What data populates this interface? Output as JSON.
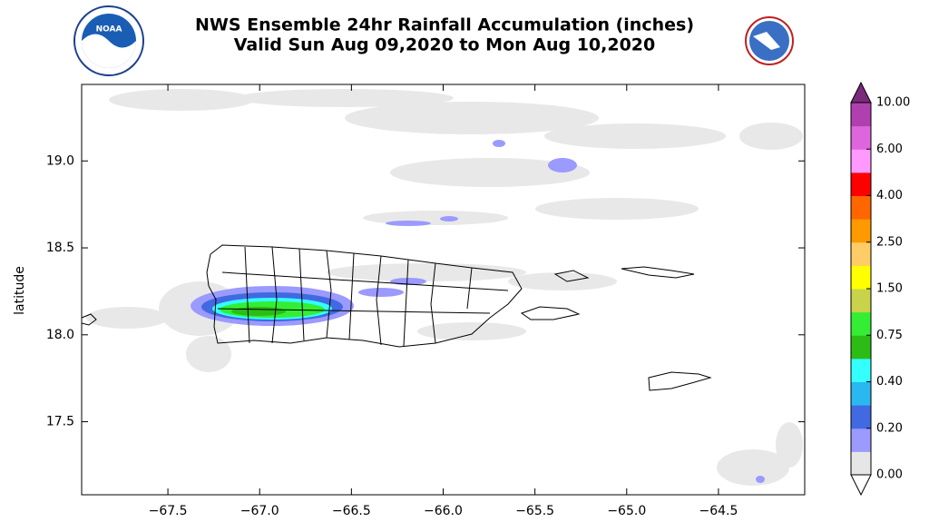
{
  "chart_data": {
    "type": "map",
    "title": [
      "NWS Ensemble 24hr Rainfall Accumulation (inches)",
      "Valid Sun Aug 09,2020 to Mon Aug 10,2020"
    ],
    "ylabel": "latitude",
    "xlim": [
      -67.97,
      -64.03
    ],
    "ylim": [
      17.08,
      19.44
    ],
    "xticks": [
      {
        "value": -67.5,
        "label": "−67.5"
      },
      {
        "value": -67.0,
        "label": "−67.0"
      },
      {
        "value": -66.5,
        "label": "−66.5"
      },
      {
        "value": -66.0,
        "label": "−66.0"
      },
      {
        "value": -65.5,
        "label": "−65.5"
      },
      {
        "value": -65.0,
        "label": "−65.0"
      },
      {
        "value": -64.5,
        "label": "−64.5"
      }
    ],
    "yticks": [
      {
        "value": 17.5,
        "label": "17.5"
      },
      {
        "value": 18.0,
        "label": "18.0"
      },
      {
        "value": 18.5,
        "label": "18.5"
      },
      {
        "value": 19.0,
        "label": "19.0"
      }
    ],
    "colorbar": {
      "ticks": [
        {
          "value": 0,
          "label": "0.00"
        },
        {
          "value": 0.2,
          "label": "0.20"
        },
        {
          "value": 0.4,
          "label": "0.40"
        },
        {
          "value": 0.75,
          "label": "0.75"
        },
        {
          "value": 1.5,
          "label": "1.50"
        },
        {
          "value": 2.5,
          "label": "2.50"
        },
        {
          "value": 4,
          "label": "4.00"
        },
        {
          "value": 6,
          "label": "6.00"
        },
        {
          "value": 10,
          "label": "10.00"
        }
      ],
      "colors": [
        "#e6e6e6",
        "#9a9aff",
        "#4169e1",
        "#2ab8f0",
        "#33ffff",
        "#2dbb16",
        "#33ee33",
        "#c8d24b",
        "#ffff00",
        "#ffcc66",
        "#ff9900",
        "#ff6600",
        "#ff0000",
        "#ff99ff",
        "#dd66dd",
        "#b040b0"
      ],
      "over_color": "#7a2a7a"
    }
  }
}
